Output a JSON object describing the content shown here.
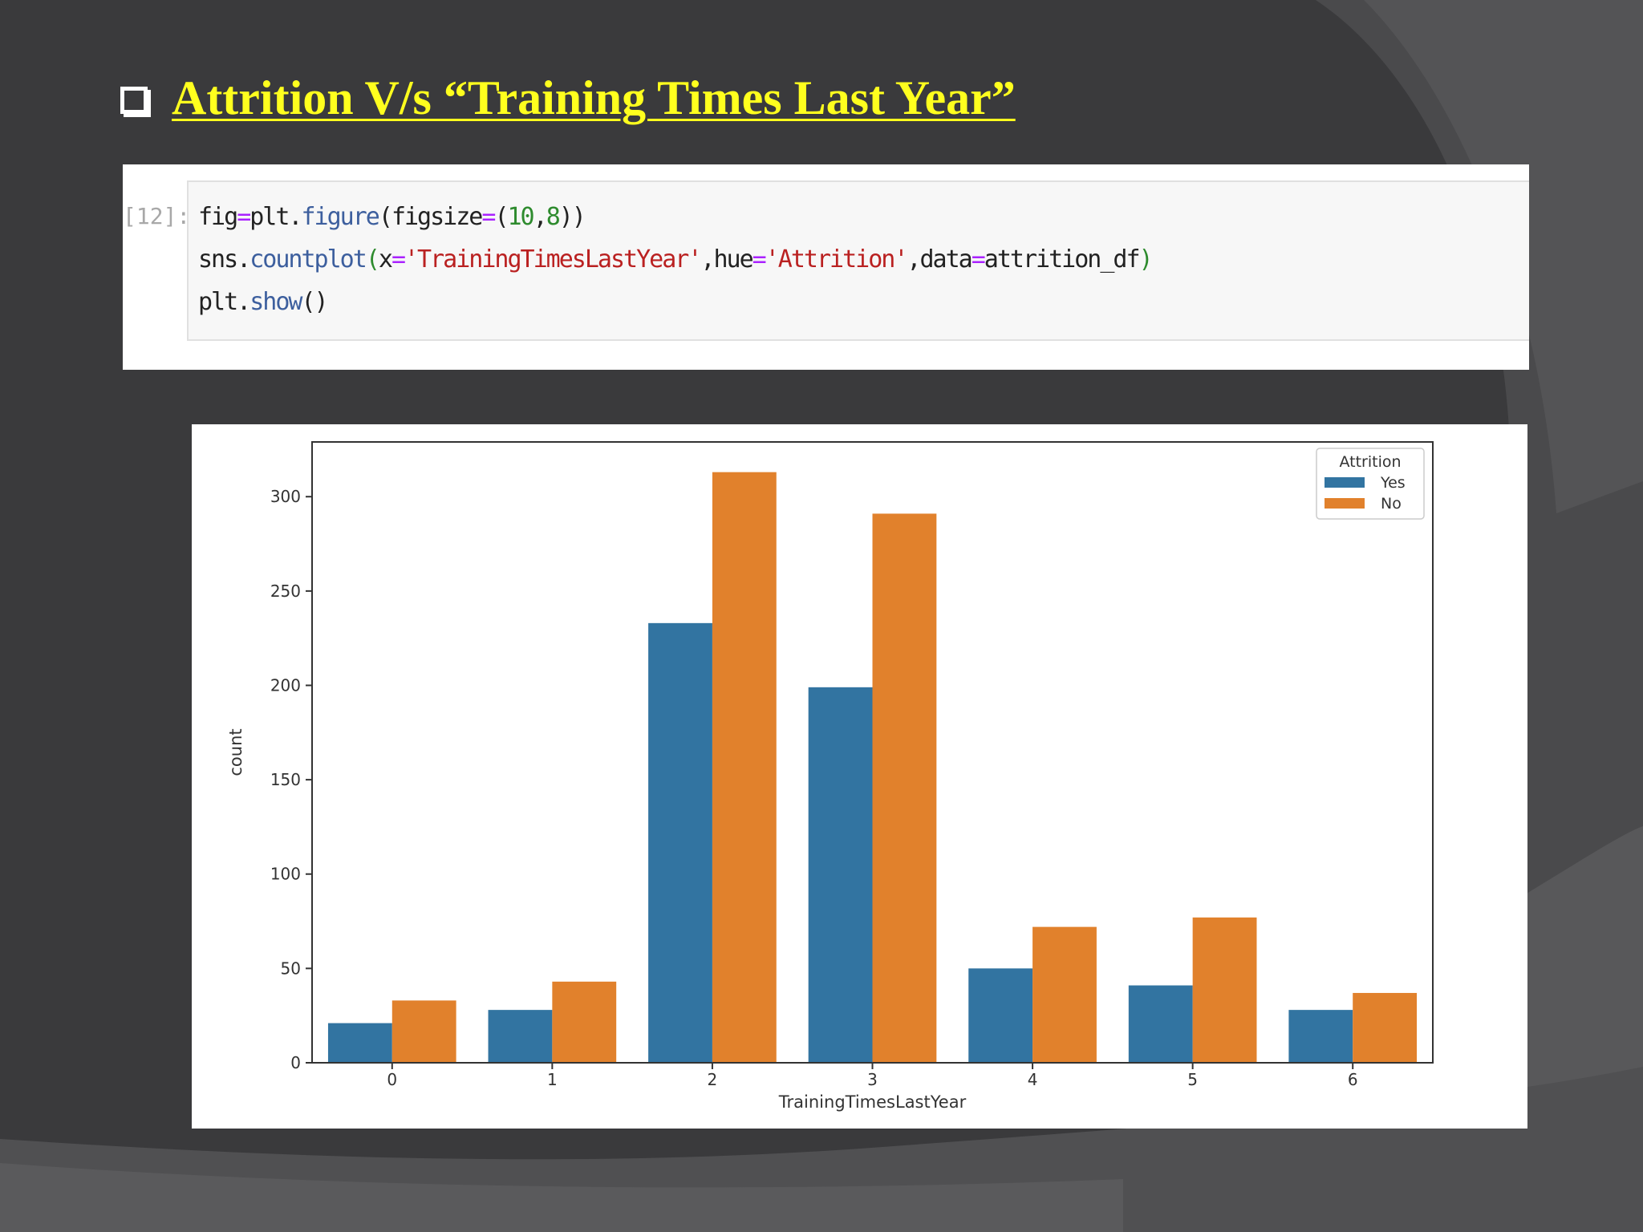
{
  "slide": {
    "title": "Attrition V/s “Training Times Last Year”"
  },
  "code": {
    "prompt": "[12]:",
    "lines": [
      [
        [
          "fig",
          ""
        ],
        [
          "=",
          "c-op"
        ],
        [
          "plt.",
          ""
        ],
        [
          "figure",
          "c-fn"
        ],
        [
          "(",
          ""
        ],
        [
          "figsize",
          ""
        ],
        [
          "=",
          "c-op"
        ],
        [
          "(",
          ""
        ],
        [
          "10",
          "c-num"
        ],
        [
          ",",
          ""
        ],
        [
          "8",
          "c-num"
        ],
        [
          "))",
          ""
        ]
      ],
      [
        [
          "sns.",
          ""
        ],
        [
          "countplot",
          "c-fn"
        ],
        [
          "(",
          "c-paren"
        ],
        [
          "x",
          ""
        ],
        [
          "=",
          "c-op"
        ],
        [
          "'TrainingTimesLastYear'",
          "c-str"
        ],
        [
          ",hue",
          ""
        ],
        [
          "=",
          "c-op"
        ],
        [
          "'Attrition'",
          "c-str"
        ],
        [
          ",data",
          ""
        ],
        [
          "=",
          "c-op"
        ],
        [
          "attrition_df",
          ""
        ],
        [
          ")",
          "c-paren"
        ]
      ],
      [
        [
          "plt.",
          ""
        ],
        [
          "show",
          "c-fn"
        ],
        [
          "()",
          ""
        ]
      ]
    ]
  },
  "chart_data": {
    "type": "bar",
    "categories": [
      "0",
      "1",
      "2",
      "3",
      "4",
      "5",
      "6"
    ],
    "series": [
      {
        "name": "Yes",
        "color": "#3274a1",
        "values": [
          21,
          28,
          233,
          199,
          50,
          41,
          28
        ]
      },
      {
        "name": "No",
        "color": "#e1812c",
        "values": [
          33,
          43,
          313,
          291,
          72,
          77,
          37
        ]
      }
    ],
    "xlabel": "TrainingTimesLastYear",
    "ylabel": "count",
    "ylim": [
      0,
      329
    ],
    "yticks": [
      0,
      50,
      100,
      150,
      200,
      250,
      300
    ],
    "legend": {
      "title": "Attrition",
      "position": "top-right"
    },
    "grid": false
  }
}
